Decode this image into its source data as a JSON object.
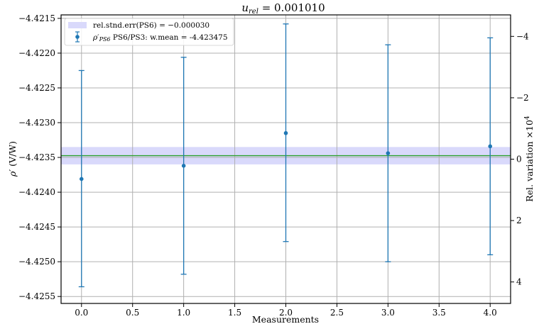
{
  "chart_data": {
    "type": "scatter",
    "title": "u_rel = 0.001010",
    "xlabel": "Measurements",
    "ylabel": "ρ' (V/W)",
    "y2label": "Rel. variation ×10⁴",
    "xlim": [
      -0.2,
      4.2
    ],
    "ylim": [
      -4.4256,
      -4.42145
    ],
    "y2lim": [
      4.7,
      -4.7
    ],
    "x_ticks": [
      0.0,
      0.5,
      1.0,
      1.5,
      2.0,
      2.5,
      3.0,
      3.5,
      4.0
    ],
    "x_tick_labels": [
      "0.0",
      "0.5",
      "1.0",
      "1.5",
      "2.0",
      "2.5",
      "3.0",
      "3.5",
      "4.0"
    ],
    "y_ticks": [
      -4.4215,
      -4.422,
      -4.4225,
      -4.423,
      -4.4235,
      -4.424,
      -4.4245,
      -4.425,
      -4.4255
    ],
    "y_tick_labels": [
      "−4.4215",
      "−4.4220",
      "−4.4225",
      "−4.4230",
      "−4.4235",
      "−4.4240",
      "−4.4245",
      "−4.4250",
      "−4.4255"
    ],
    "y2_ticks": [
      -4,
      -2,
      0,
      2,
      4
    ],
    "y2_tick_labels": [
      "−4",
      "−2",
      "0",
      "2",
      "4"
    ],
    "grid": true,
    "legend_position": "top-left",
    "series": [
      {
        "name": "ρ′PS6 PS6/PS3:  w.mean = -4.423475",
        "color": "#1f77b4",
        "x": [
          0,
          1,
          2,
          3,
          4
        ],
        "y": [
          -4.42381,
          -4.42362,
          -4.42315,
          -4.42344,
          -4.42334
        ],
        "yerr_low": [
          -4.42536,
          -4.42518,
          -4.42471,
          -4.425,
          -4.4249
        ],
        "yerr_high": [
          -4.42225,
          -4.42206,
          -4.42158,
          -4.42188,
          -4.42178
        ]
      }
    ],
    "mean_line": {
      "value": -4.423475,
      "color": "#2ca02c"
    },
    "band": {
      "name": "rel.stnd.err(PS6) = −0.000030",
      "low": -4.4236,
      "high": -4.42335,
      "color": "#d9d9fb"
    },
    "legend": {
      "band_label": "rel.stnd.err(PS6) = −0.000030",
      "series_prefix": "ρ′",
      "series_subscript": "PS6",
      "series_label": "PS6/PS3:  w.mean = -4.423475"
    }
  }
}
